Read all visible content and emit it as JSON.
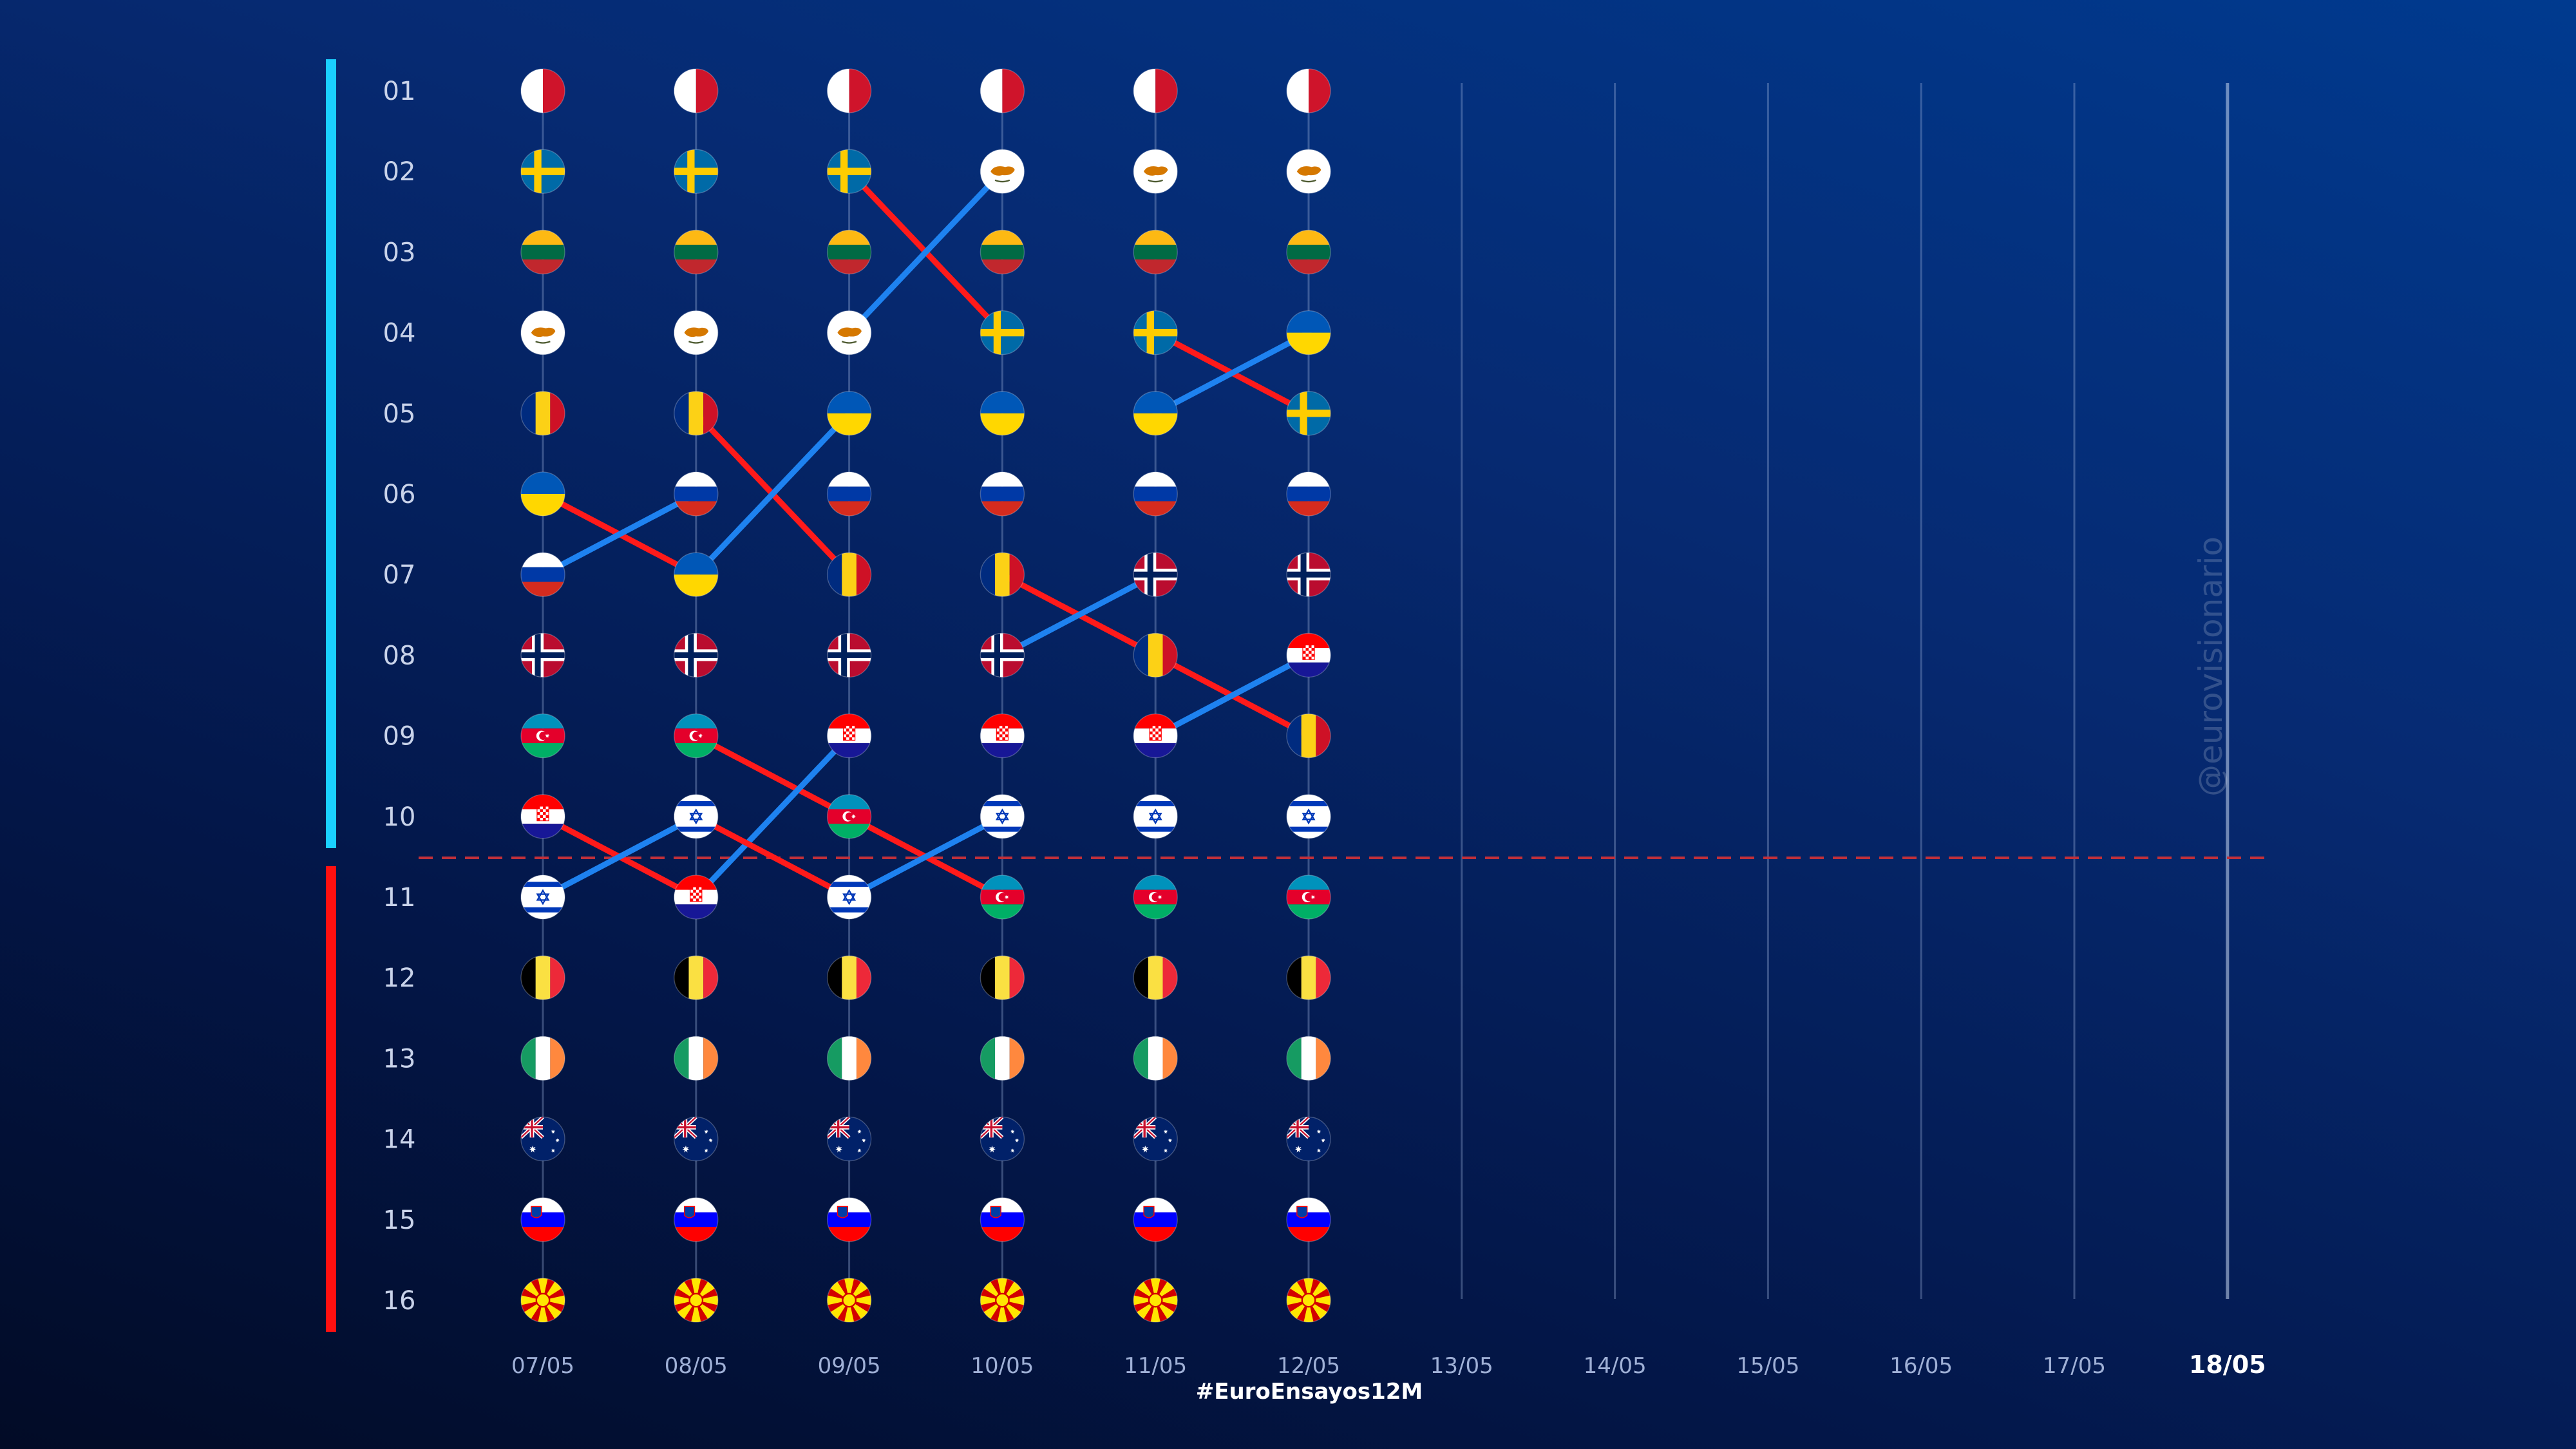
{
  "chart_data": {
    "type": "line",
    "dates": [
      "07/05",
      "08/05",
      "09/05",
      "10/05",
      "11/05",
      "12/05",
      "13/05",
      "14/05",
      "15/05",
      "16/05",
      "17/05",
      "18/05"
    ],
    "final_date": "18/05",
    "ranks": [
      "01",
      "02",
      "03",
      "04",
      "05",
      "06",
      "07",
      "08",
      "09",
      "10",
      "11",
      "12",
      "13",
      "14",
      "15",
      "16"
    ],
    "qualifier_cutoff": 10,
    "hashtag": "#EuroEnsayos12M",
    "watermark": "@eurovisionario",
    "colors": {
      "rise": "#1e82f0",
      "fall": "#ff1a1a",
      "top_bar": "#1ad0ff",
      "bottom_bar": "#ff1010",
      "cutoff": "#c0303a"
    },
    "series": [
      {
        "flag": "malta-flag-icon",
        "ranks": [
          1,
          1,
          1,
          1,
          1,
          1
        ]
      },
      {
        "flag": "sweden-flag-icon",
        "ranks": [
          2,
          2,
          2,
          4,
          4,
          5
        ]
      },
      {
        "flag": "lithuania-flag-icon",
        "ranks": [
          3,
          3,
          3,
          3,
          3,
          3
        ]
      },
      {
        "flag": "cyprus-flag-icon",
        "ranks": [
          4,
          4,
          4,
          2,
          2,
          2
        ]
      },
      {
        "flag": "romania-flag-icon",
        "ranks": [
          5,
          5,
          7,
          7,
          8,
          9
        ]
      },
      {
        "flag": "ukraine-flag-icon",
        "ranks": [
          6,
          7,
          5,
          5,
          5,
          4
        ]
      },
      {
        "flag": "russia-flag-icon",
        "ranks": [
          7,
          6,
          6,
          6,
          6,
          6
        ]
      },
      {
        "flag": "norway-flag-icon",
        "ranks": [
          8,
          8,
          8,
          8,
          7,
          7
        ]
      },
      {
        "flag": "azerbaijan-flag-icon",
        "ranks": [
          9,
          9,
          10,
          11,
          11,
          11
        ]
      },
      {
        "flag": "croatia-flag-icon",
        "ranks": [
          10,
          11,
          9,
          9,
          9,
          8
        ]
      },
      {
        "flag": "israel-flag-icon",
        "ranks": [
          11,
          10,
          11,
          10,
          10,
          10
        ]
      },
      {
        "flag": "belgium-flag-icon",
        "ranks": [
          12,
          12,
          12,
          12,
          12,
          12
        ]
      },
      {
        "flag": "ireland-flag-icon",
        "ranks": [
          13,
          13,
          13,
          13,
          13,
          13
        ]
      },
      {
        "flag": "australia-flag-icon",
        "ranks": [
          14,
          14,
          14,
          14,
          14,
          14
        ]
      },
      {
        "flag": "slovenia-flag-icon",
        "ranks": [
          15,
          15,
          15,
          15,
          15,
          15
        ]
      },
      {
        "flag": "north-macedonia-flag-icon",
        "ranks": [
          16,
          16,
          16,
          16,
          16,
          16
        ]
      }
    ]
  }
}
